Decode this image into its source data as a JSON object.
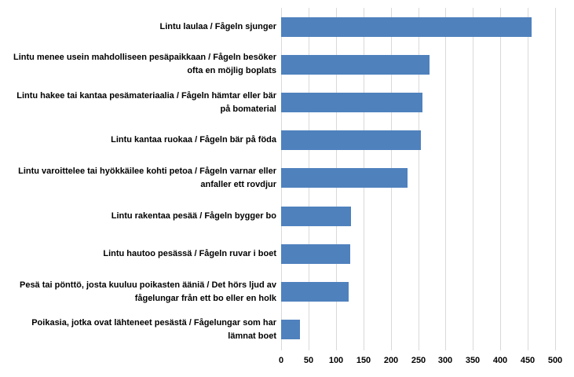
{
  "chart_data": {
    "type": "bar",
    "orientation": "horizontal",
    "title": "",
    "xlabel": "",
    "ylabel": "",
    "categories": [
      "Lintu laulaa / Fågeln sjunger",
      "Lintu menee usein mahdolliseen pesäpaikkaan / Fågeln besöker ofta en möjlig boplats",
      "Lintu hakee tai kantaa pesämateriaalia / Fågeln hämtar eller bär på bomaterial",
      "Lintu kantaa ruokaa / Fågeln bär på föda",
      "Lintu varoittelee tai hyökkäilee kohti petoa / Fågeln varnar eller anfaller ett rovdjur",
      "Lintu rakentaa pesää / Fågeln bygger bo",
      "Lintu hautoo pesässä / Fågeln ruvar i boet",
      "Pesä tai pönttö, josta kuuluu poikasten ääniä / Det hörs ljud av fågelungar från ett bo eller en holk",
      "Poikasia, jotka ovat lähteneet pesästä / Fågelungar som har lämnat boet"
    ],
    "values": [
      457,
      270,
      258,
      255,
      231,
      127,
      126,
      123,
      35
    ],
    "xlim": [
      0,
      500
    ],
    "xticks": [
      0,
      50,
      100,
      150,
      200,
      250,
      300,
      350,
      400,
      450,
      500
    ],
    "grid": true,
    "legend": false,
    "colors": {
      "bar": "#4F81BD",
      "gridline": "#D9D9D9",
      "text": "#000000",
      "background": "#FFFFFF"
    }
  }
}
